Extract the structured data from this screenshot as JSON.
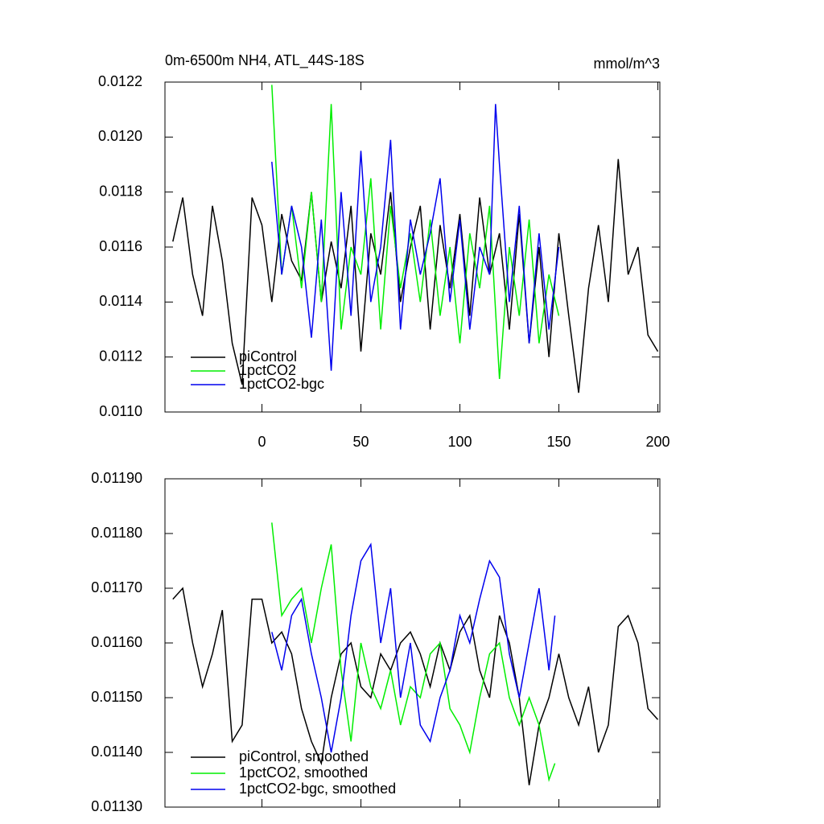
{
  "chart_data": [
    {
      "type": "line",
      "title": "0m-6500m NH4, ATL_44S-18S",
      "units": "mmol/m^3",
      "xlim": [
        -49,
        201
      ],
      "xticks": [
        0,
        50,
        100,
        150,
        200
      ],
      "ylim": [
        0.011,
        0.0122
      ],
      "yticks": [
        {
          "value": 0.011,
          "label": "0.0110"
        },
        0.0112,
        0.0114,
        0.0116,
        0.0118,
        {
          "value": 0.012,
          "label": "0.0120"
        },
        0.0122
      ],
      "legend": "lower left",
      "series": [
        {
          "name": "piControl",
          "color": "#000000",
          "x": [
            -45,
            -40,
            -35,
            -30,
            -25,
            -20,
            -15,
            -10,
            -5,
            0,
            5,
            10,
            15,
            20,
            25,
            30,
            35,
            40,
            45,
            50,
            55,
            60,
            65,
            70,
            75,
            80,
            85,
            90,
            95,
            100,
            105,
            110,
            115,
            120,
            125,
            130,
            135,
            140,
            145,
            150,
            155,
            160,
            165,
            170,
            175,
            180,
            185,
            190,
            195,
            200
          ],
          "values": [
            0.01162,
            0.01178,
            0.0115,
            0.01135,
            0.01175,
            0.01155,
            0.01125,
            0.0111,
            0.01178,
            0.01168,
            0.0114,
            0.01172,
            0.01155,
            0.01148,
            0.0118,
            0.0114,
            0.01162,
            0.01145,
            0.01175,
            0.01122,
            0.01165,
            0.0115,
            0.0118,
            0.0114,
            0.0116,
            0.01175,
            0.0113,
            0.01168,
            0.01145,
            0.01172,
            0.01135,
            0.01178,
            0.0115,
            0.01165,
            0.0113,
            0.01172,
            0.01125,
            0.0116,
            0.0112,
            0.01165,
            0.01135,
            0.01107,
            0.01145,
            0.01168,
            0.0114,
            0.01192,
            0.0115,
            0.0116,
            0.01128,
            0.01122
          ]
        },
        {
          "name": "1pctCO2",
          "color": "#00ee00",
          "x": [
            5,
            10,
            15,
            20,
            25,
            30,
            35,
            40,
            45,
            50,
            55,
            60,
            65,
            70,
            75,
            80,
            85,
            90,
            95,
            100,
            105,
            110,
            115,
            120,
            125,
            130,
            135,
            140,
            145,
            150
          ],
          "values": [
            0.01219,
            0.0115,
            0.01175,
            0.01145,
            0.0118,
            0.0114,
            0.01212,
            0.0113,
            0.0116,
            0.0115,
            0.01185,
            0.0113,
            0.01175,
            0.01145,
            0.01165,
            0.0114,
            0.0117,
            0.01135,
            0.0116,
            0.01125,
            0.01165,
            0.01145,
            0.01175,
            0.01112,
            0.0116,
            0.01135,
            0.0117,
            0.01125,
            0.0115,
            0.01135
          ]
        },
        {
          "name": "1pctCO2-bgc",
          "color": "#0000ee",
          "x": [
            5,
            10,
            15,
            20,
            25,
            30,
            35,
            40,
            45,
            50,
            55,
            60,
            65,
            70,
            75,
            80,
            85,
            90,
            95,
            100,
            105,
            110,
            115,
            118,
            120,
            125,
            130,
            135,
            140,
            145,
            150
          ],
          "values": [
            0.01191,
            0.0115,
            0.01175,
            0.0116,
            0.01127,
            0.0117,
            0.01115,
            0.0118,
            0.01135,
            0.01195,
            0.0114,
            0.0116,
            0.01199,
            0.0113,
            0.0117,
            0.0115,
            0.01165,
            0.01185,
            0.0114,
            0.0117,
            0.0113,
            0.0116,
            0.0115,
            0.01212,
            0.0119,
            0.0114,
            0.01175,
            0.01125,
            0.01165,
            0.0113,
            0.0116
          ]
        }
      ]
    },
    {
      "type": "line",
      "xlim": [
        -49,
        201
      ],
      "ylim": [
        0.0113,
        0.0119
      ],
      "yticks": [
        {
          "value": 0.0113,
          "label": "0.01130"
        },
        {
          "value": 0.0114,
          "label": "0.01140"
        },
        {
          "value": 0.0115,
          "label": "0.01150"
        },
        {
          "value": 0.0116,
          "label": "0.01160"
        },
        {
          "value": 0.0117,
          "label": "0.01170"
        },
        {
          "value": 0.0118,
          "label": "0.01180"
        },
        {
          "value": 0.0119,
          "label": "0.01190"
        }
      ],
      "legend": "lower left",
      "series": [
        {
          "name": "piControl, smoothed",
          "color": "#000000",
          "x": [
            -45,
            -40,
            -35,
            -30,
            -25,
            -20,
            -15,
            -10,
            -5,
            0,
            5,
            10,
            15,
            20,
            25,
            30,
            35,
            40,
            45,
            50,
            55,
            60,
            65,
            70,
            75,
            80,
            85,
            90,
            95,
            100,
            105,
            110,
            115,
            120,
            125,
            130,
            135,
            140,
            145,
            150,
            155,
            160,
            165,
            170,
            175,
            180,
            185,
            190,
            195,
            200
          ],
          "values": [
            0.01168,
            0.0117,
            0.0116,
            0.01152,
            0.01158,
            0.01166,
            0.01142,
            0.01145,
            0.01168,
            0.01168,
            0.0116,
            0.01162,
            0.01158,
            0.01148,
            0.01142,
            0.01138,
            0.0115,
            0.01158,
            0.0116,
            0.01152,
            0.0115,
            0.01158,
            0.01155,
            0.0116,
            0.01162,
            0.01158,
            0.01152,
            0.0116,
            0.01155,
            0.01162,
            0.01165,
            0.01155,
            0.0115,
            0.01165,
            0.0116,
            0.0115,
            0.01134,
            0.01145,
            0.0115,
            0.01158,
            0.0115,
            0.01145,
            0.01152,
            0.0114,
            0.01145,
            0.01163,
            0.01165,
            0.0116,
            0.01148,
            0.01146
          ]
        },
        {
          "name": "1pctCO2, smoothed",
          "color": "#00ee00",
          "x": [
            5,
            10,
            15,
            20,
            25,
            30,
            35,
            40,
            45,
            50,
            55,
            60,
            65,
            70,
            75,
            80,
            85,
            90,
            95,
            100,
            105,
            110,
            115,
            120,
            125,
            130,
            135,
            140,
            145,
            148
          ],
          "values": [
            0.01182,
            0.01165,
            0.01168,
            0.0117,
            0.0116,
            0.0117,
            0.01178,
            0.01155,
            0.01142,
            0.0116,
            0.01152,
            0.01148,
            0.01155,
            0.01145,
            0.01152,
            0.0115,
            0.01158,
            0.0116,
            0.01148,
            0.01145,
            0.0114,
            0.0115,
            0.01158,
            0.0116,
            0.0115,
            0.01145,
            0.0115,
            0.01145,
            0.01135,
            0.01138
          ]
        },
        {
          "name": "1pctCO2-bgc, smoothed",
          "color": "#0000ee",
          "x": [
            5,
            10,
            15,
            20,
            25,
            30,
            35,
            40,
            45,
            50,
            55,
            60,
            65,
            70,
            75,
            80,
            85,
            90,
            95,
            100,
            105,
            110,
            115,
            120,
            125,
            130,
            135,
            140,
            145,
            148
          ],
          "values": [
            0.01162,
            0.01155,
            0.01165,
            0.01168,
            0.01158,
            0.0115,
            0.0114,
            0.0115,
            0.01165,
            0.01175,
            0.01178,
            0.0116,
            0.0117,
            0.0115,
            0.0116,
            0.01145,
            0.01142,
            0.0115,
            0.01155,
            0.01165,
            0.0116,
            0.01168,
            0.01175,
            0.01172,
            0.01158,
            0.0115,
            0.0116,
            0.0117,
            0.01155,
            0.01165
          ]
        }
      ]
    }
  ]
}
